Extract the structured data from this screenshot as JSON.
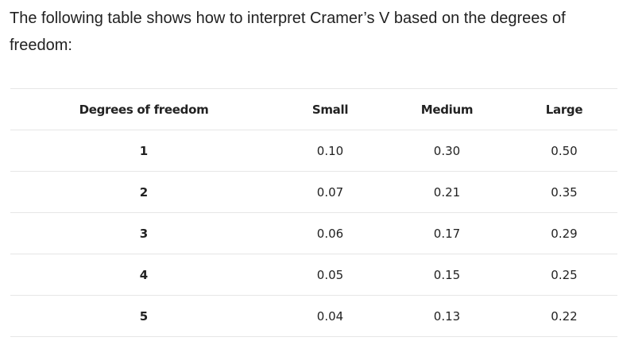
{
  "intro": {
    "text": "The following table shows how to interpret Cramer’s V based on the degrees of freedom:"
  },
  "table": {
    "headers": [
      "Degrees of freedom",
      "Small",
      "Medium",
      "Large"
    ],
    "rows": [
      [
        "1",
        "0.10",
        "0.30",
        "0.50"
      ],
      [
        "2",
        "0.07",
        "0.21",
        "0.35"
      ],
      [
        "3",
        "0.06",
        "0.17",
        "0.29"
      ],
      [
        "4",
        "0.05",
        "0.15",
        "0.25"
      ],
      [
        "5",
        "0.04",
        "0.13",
        "0.22"
      ]
    ]
  }
}
